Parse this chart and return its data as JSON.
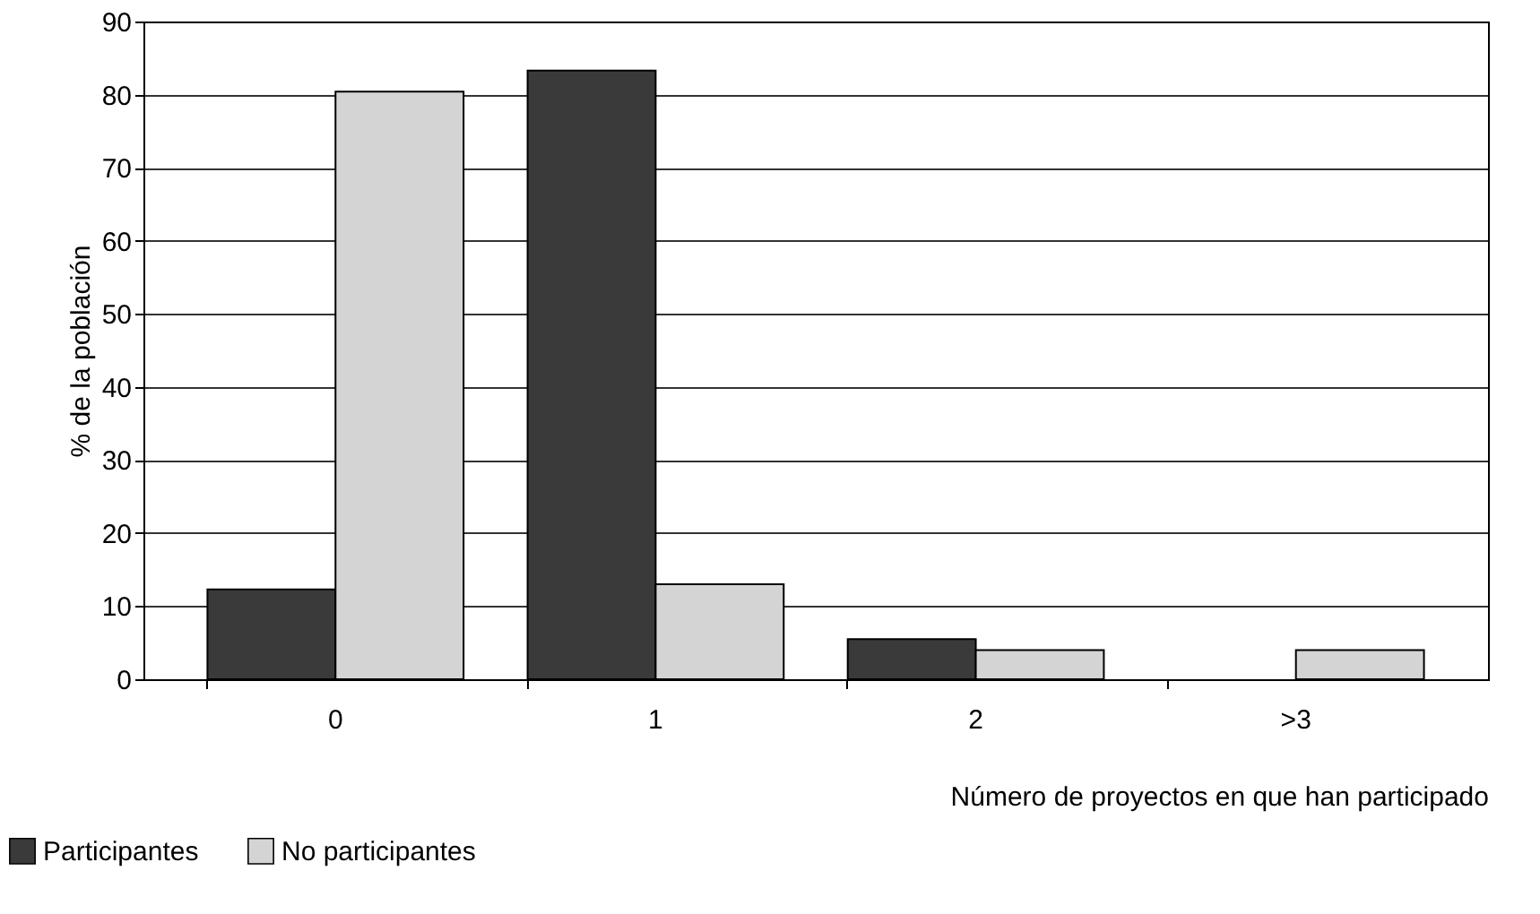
{
  "chart_data": {
    "type": "bar",
    "xlabel": "Número de proyectos en que han participado",
    "ylabel": "% de la población",
    "categories": [
      "0",
      "1",
      "2",
      ">3"
    ],
    "series": [
      {
        "name": "Participantes",
        "color": "#3a3a3a",
        "values": [
          12.3,
          83.3,
          5.5,
          0
        ]
      },
      {
        "name": "No participantes",
        "color": "#d4d4d4",
        "values": [
          80.4,
          13,
          4,
          4
        ]
      }
    ],
    "ylim": [
      0,
      90
    ],
    "yticks": [
      0,
      10,
      20,
      30,
      40,
      50,
      60,
      70,
      80,
      90
    ],
    "grid": "y",
    "legend": "bottom left"
  }
}
